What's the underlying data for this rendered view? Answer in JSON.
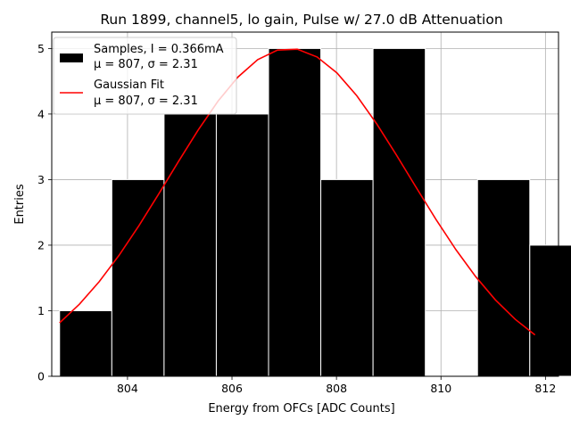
{
  "chart_data": {
    "type": "bar",
    "title": "Run 1899, channel5, lo gain, Pulse w/ 27.0 dB Attenuation",
    "xlabel": "Energy from OFCs [ADC Counts]",
    "ylabel": "Entries",
    "xlim": [
      802.55,
      812.25
    ],
    "ylim": [
      0,
      5.25
    ],
    "x_ticks": [
      804,
      806,
      808,
      810,
      812
    ],
    "y_ticks": [
      0,
      1,
      2,
      3,
      4,
      5
    ],
    "grid": true,
    "legend_position": "top-left",
    "histogram": {
      "name": "Samples, I = 0.366mA",
      "stats": "μ = 807, σ = 2.31",
      "color": "#000000",
      "edge_color": "#ffffff",
      "bin_width": 1.0,
      "bins": [
        {
          "left": 802.7,
          "count": 1
        },
        {
          "left": 803.7,
          "count": 3
        },
        {
          "left": 804.7,
          "count": 4
        },
        {
          "left": 805.7,
          "count": 4
        },
        {
          "left": 806.7,
          "count": 5
        },
        {
          "left": 807.7,
          "count": 3
        },
        {
          "left": 808.7,
          "count": 5
        },
        {
          "left": 809.7,
          "count": 0
        },
        {
          "left": 810.7,
          "count": 3
        },
        {
          "left": 811.7,
          "count": 2
        }
      ]
    },
    "fit": {
      "name": "Gaussian Fit",
      "stats": "μ = 807, σ = 2.31",
      "color": "#ff0000",
      "mean": 807.1,
      "sigma": 2.31,
      "amplitude": 5.0,
      "x_range": [
        802.7,
        811.8
      ]
    }
  }
}
